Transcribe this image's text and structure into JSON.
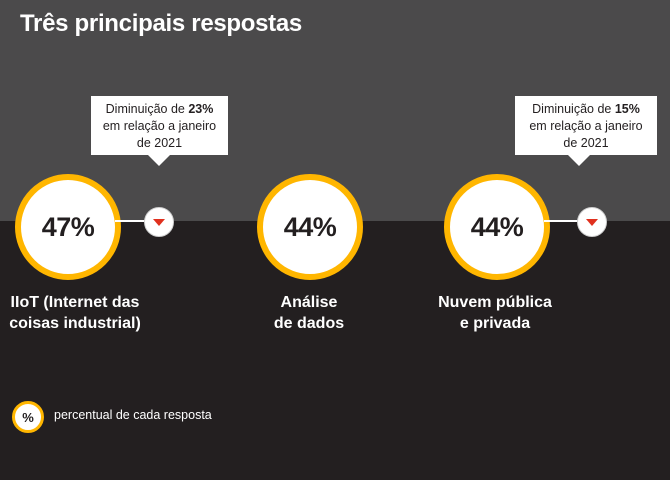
{
  "title": "Três principais respostas",
  "chart_data": {
    "type": "bar",
    "title": "Três principais respostas",
    "categories": [
      "IIoT (Internet das coisas industrial)",
      "Análise de dados",
      "Nuvem pública e privada"
    ],
    "values": [
      47,
      44,
      44
    ],
    "unit": "%"
  },
  "items": [
    {
      "value_label": "47%",
      "label_lines": [
        "IIoT (Internet das",
        "coisas industrial)"
      ],
      "change": {
        "direction": "down",
        "prefix": "Diminuição de ",
        "amount": "23%",
        "line2": "em relação a janeiro",
        "line3": "de 2021"
      }
    },
    {
      "value_label": "44%",
      "label_lines": [
        "Análise",
        "de dados"
      ]
    },
    {
      "value_label": "44%",
      "label_lines": [
        "Nuvem pública",
        "e privada"
      ],
      "change": {
        "direction": "down",
        "prefix": "Diminuição de ",
        "amount": "15%",
        "line2": "em relação a janeiro",
        "line3": "de 2021"
      }
    }
  ],
  "legend": {
    "symbol": "%",
    "text": "percentual de cada resposta"
  },
  "colors": {
    "top_band": "#4b4a4b",
    "bottom_band": "#231f20",
    "ring": "#ffb600",
    "down_arrow": "#e0301e"
  }
}
